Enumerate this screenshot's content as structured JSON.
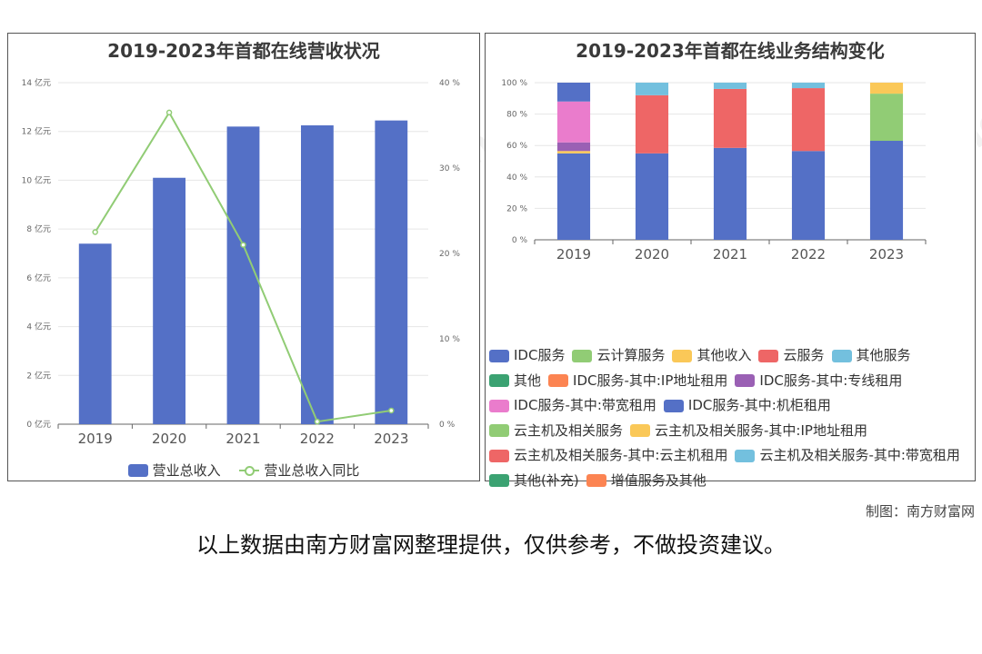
{
  "credit": "制图：南方财富网",
  "disclaimer": "以上数据由南方财富网整理提供，仅供参考，不做投资建议。",
  "watermark": "南方财富网 southmoney.com",
  "chart_data": [
    {
      "type": "bar",
      "title": "2019-2023年首都在线营收状况",
      "categories": [
        "2019",
        "2020",
        "2021",
        "2022",
        "2023"
      ],
      "series": [
        {
          "name": "营业总收入",
          "type": "bar",
          "axis": "left",
          "values": [
            7.4,
            10.1,
            12.2,
            12.25,
            12.45
          ],
          "color": "#5470c6"
        },
        {
          "name": "营业总收入同比",
          "type": "line",
          "axis": "right",
          "values": [
            22.5,
            36.5,
            21.0,
            0.3,
            1.6
          ],
          "color": "#91cc75"
        }
      ],
      "y_left": {
        "min": 0,
        "max": 14,
        "ticks": [
          0,
          2,
          4,
          6,
          8,
          10,
          12,
          14
        ],
        "unit": "亿元"
      },
      "y_right": {
        "min": 0,
        "max": 40,
        "ticks": [
          0,
          10,
          20,
          30,
          40
        ],
        "unit": "%"
      },
      "legend_position": "bottom"
    },
    {
      "type": "bar",
      "stacked": true,
      "title": "2019-2023年首都在线业务结构变化",
      "categories": [
        "2019",
        "2020",
        "2021",
        "2022",
        "2023"
      ],
      "y": {
        "min": 0,
        "max": 100,
        "ticks": [
          0,
          20,
          40,
          60,
          80,
          100
        ],
        "unit": "%"
      },
      "series": [
        {
          "name": "IDC服务",
          "color": "#5470c6",
          "values": [
            55,
            55,
            58.5,
            56.5,
            63
          ]
        },
        {
          "name": "云计算服务",
          "color": "#91cc75",
          "values": [
            0,
            0,
            0,
            0,
            0
          ]
        },
        {
          "name": "其他收入",
          "color": "#fac858",
          "values": [
            1.5,
            0,
            0,
            0,
            0
          ]
        },
        {
          "name": "云服务",
          "color": "#ee6666",
          "values": [
            0,
            37,
            37.5,
            40,
            0
          ]
        },
        {
          "name": "其他服务",
          "color": "#73c0de",
          "values": [
            0,
            8,
            4,
            3.5,
            0
          ]
        },
        {
          "name": "其他",
          "color": "#3ba272",
          "values": [
            0,
            0,
            0,
            0,
            0
          ]
        },
        {
          "name": "IDC服务-其中:IP地址租用",
          "color": "#fc8452",
          "values": [
            0,
            0,
            0,
            0,
            0
          ]
        },
        {
          "name": "IDC服务-其中:专线租用",
          "color": "#9a60b4",
          "values": [
            5.5,
            0,
            0,
            0,
            0
          ]
        },
        {
          "name": "IDC服务-其中:带宽租用",
          "color": "#ea7ccc",
          "values": [
            26,
            0,
            0,
            0,
            0
          ]
        },
        {
          "name": "IDC服务-其中:机柜租用",
          "color": "#5470c6",
          "values": [
            12,
            0,
            0,
            0,
            0
          ]
        },
        {
          "name": "云主机及相关服务",
          "color": "#91cc75",
          "values": [
            0,
            0,
            0,
            0,
            30
          ]
        },
        {
          "name": "云主机及相关服务-其中:IP地址租用",
          "color": "#fac858",
          "values": [
            0,
            0,
            0,
            0,
            7
          ]
        },
        {
          "name": "云主机及相关服务-其中:云主机租用",
          "color": "#ee6666",
          "values": [
            0,
            0,
            0,
            0,
            0
          ]
        },
        {
          "name": "云主机及相关服务-其中:带宽租用",
          "color": "#73c0de",
          "values": [
            0,
            0,
            0,
            0,
            0
          ]
        },
        {
          "name": "其他(补充)",
          "color": "#3ba272",
          "values": [
            0,
            0,
            0,
            0,
            0
          ]
        },
        {
          "name": "增值服务及其他",
          "color": "#fc8452",
          "values": [
            0,
            0,
            0,
            0,
            0
          ]
        }
      ],
      "legend_position": "bottom"
    }
  ]
}
